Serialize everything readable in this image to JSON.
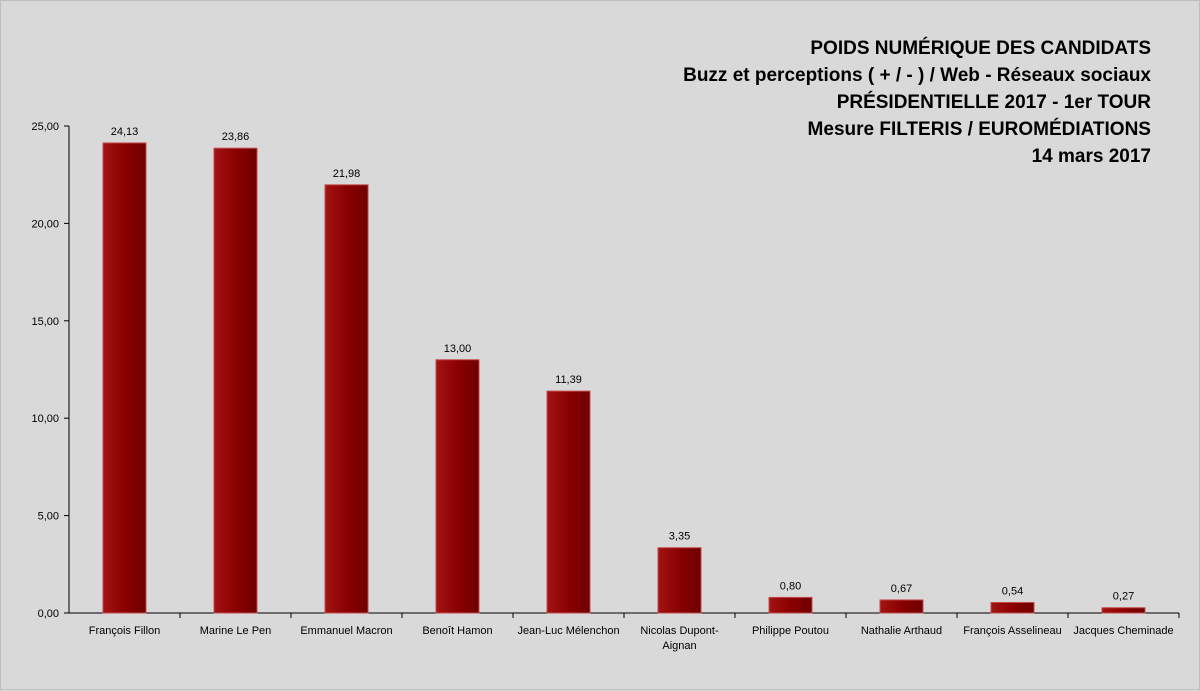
{
  "chart_data": {
    "type": "bar",
    "title_lines": [
      "POIDS NUMÉRIQUE DES CANDIDATS",
      "Buzz et perceptions ( + / - ) / Web - Réseaux sociaux",
      "PRÉSIDENTIELLE 2017 - 1er TOUR",
      "Mesure FILTERIS / EUROMÉDIATIONS",
      "14 mars 2017"
    ],
    "categories": [
      "François Fillon",
      "Marine Le Pen",
      "Emmanuel Macron",
      "Benoît Hamon",
      "Jean-Luc Mélenchon",
      "Nicolas Dupont-Aignan",
      "Philippe Poutou",
      "Nathalie Arthaud",
      "François Asselineau",
      "Jacques Cheminade"
    ],
    "category_label_lines": [
      [
        "François Fillon"
      ],
      [
        "Marine Le Pen"
      ],
      [
        "Emmanuel Macron"
      ],
      [
        "Benoît Hamon"
      ],
      [
        "Jean-Luc Mélenchon"
      ],
      [
        "Nicolas Dupont-",
        "Aignan"
      ],
      [
        "Philippe Poutou"
      ],
      [
        "Nathalie Arthaud"
      ],
      [
        "François Asselineau"
      ],
      [
        "Jacques Cheminade"
      ]
    ],
    "values": [
      24.13,
      23.86,
      21.98,
      13.0,
      11.39,
      3.35,
      0.8,
      0.67,
      0.54,
      0.27
    ],
    "value_labels": [
      "24,13",
      "23,86",
      "21,98",
      "13,00",
      "11,39",
      "3,35",
      "0,80",
      "0,67",
      "0,54",
      "0,27"
    ],
    "ylim": [
      0,
      25
    ],
    "yticks": [
      0,
      5,
      10,
      15,
      20,
      25
    ],
    "ytick_labels": [
      "0,00",
      "5,00",
      "10,00",
      "15,00",
      "20,00",
      "25,00"
    ],
    "xlabel": "",
    "ylabel": "",
    "grid": false,
    "legend": "none",
    "bar_color": "#8b0000",
    "bar_edge_color": "#c24a4a"
  }
}
